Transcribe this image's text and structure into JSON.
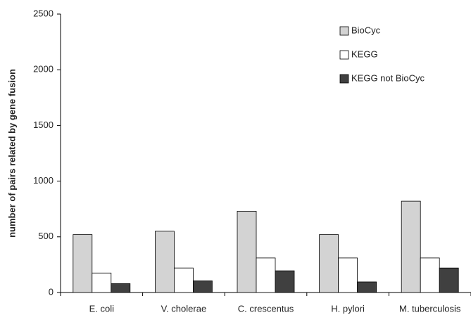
{
  "chart_data": {
    "type": "bar",
    "y_label": "number of pairs related by gene fusion",
    "categories": [
      "E. coli",
      "V. cholerae",
      "C. crescentus",
      "H. pylori",
      "M. tuberculosis"
    ],
    "series": [
      {
        "name": "BioCyc",
        "color": "#d3d3d3",
        "values": [
          520,
          550,
          730,
          520,
          820
        ]
      },
      {
        "name": "KEGG",
        "color": "#ffffff",
        "values": [
          175,
          220,
          310,
          310,
          310
        ]
      },
      {
        "name": "KEGG not BioCyc",
        "color": "#404040",
        "values": [
          80,
          105,
          195,
          95,
          220
        ]
      }
    ],
    "ylim": [
      0,
      2500
    ],
    "yticks": [
      0,
      500,
      1000,
      1500,
      2000,
      2500
    ],
    "grid": false,
    "legend": "top-right"
  }
}
